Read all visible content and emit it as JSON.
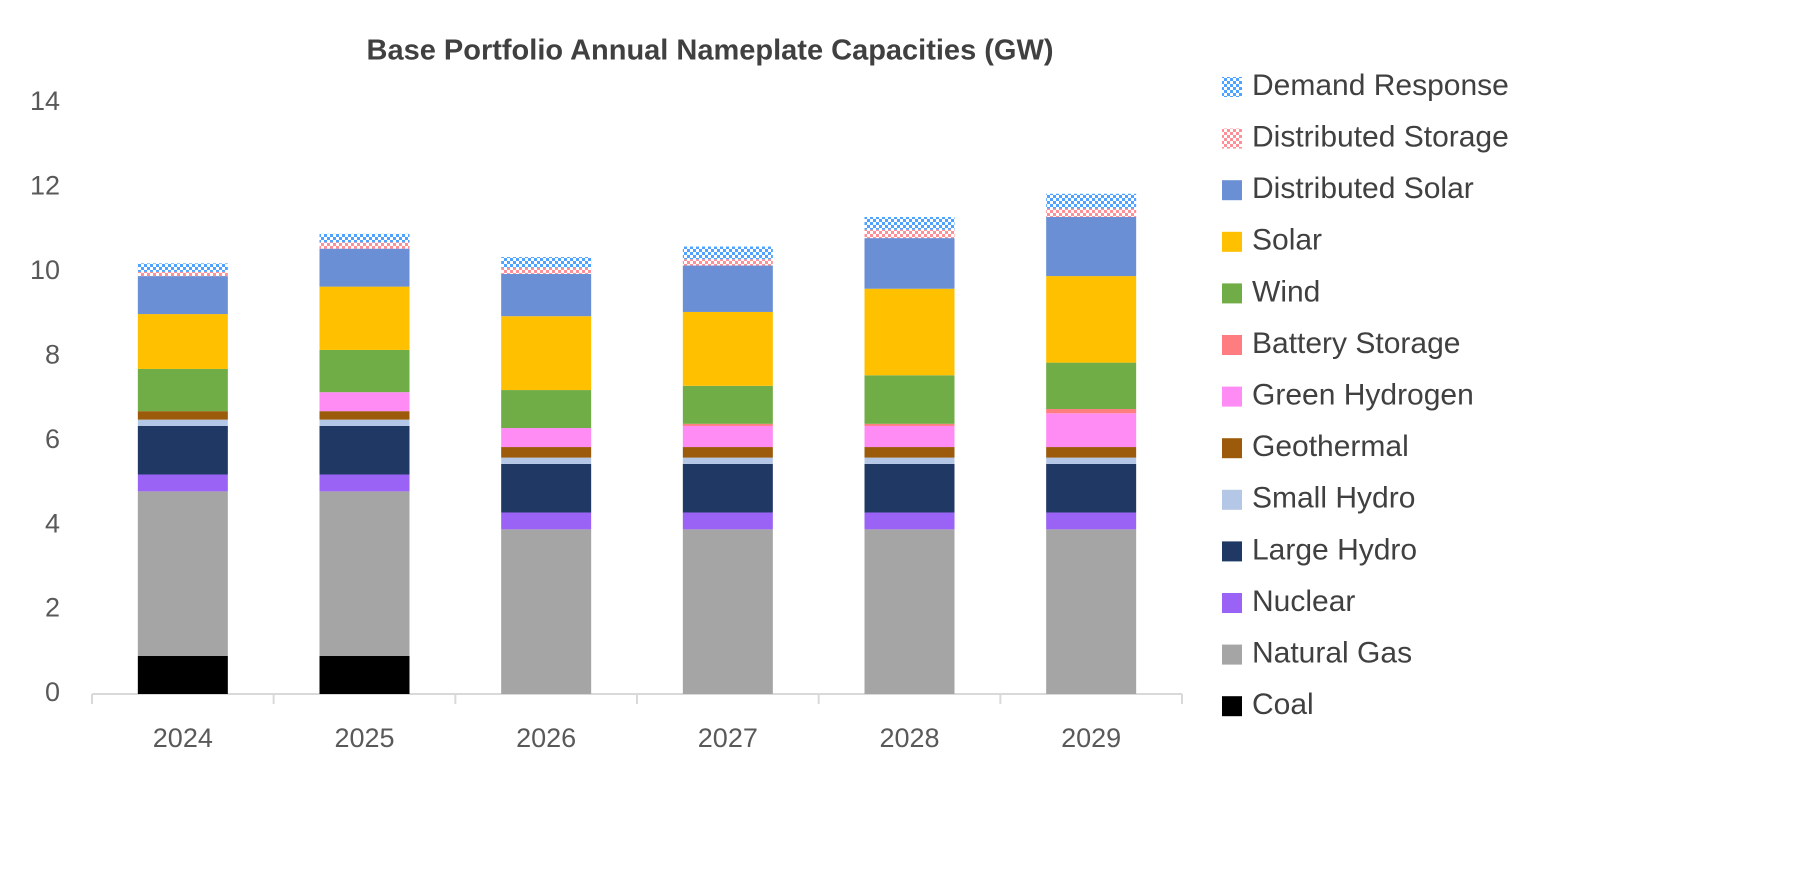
{
  "chart_data": {
    "type": "stacked_bar",
    "title": "Base Portfolio Annual Nameplate Capacities (GW)",
    "categories": [
      "2024",
      "2025",
      "2026",
      "2027",
      "2028",
      "2029"
    ],
    "ylim": [
      0,
      14
    ],
    "yticks": [
      0,
      2,
      4,
      6,
      8,
      10,
      12,
      14
    ],
    "grid": false,
    "legend": "right",
    "series": [
      {
        "name": "Coal",
        "color": "#000000",
        "values": [
          0.9,
          0.9,
          0,
          0,
          0,
          0
        ]
      },
      {
        "name": "Natural Gas",
        "color": "#a5a5a5",
        "values": [
          3.9,
          3.9,
          3.9,
          3.9,
          3.9,
          3.9
        ]
      },
      {
        "name": "Nuclear",
        "color": "#9a63f5",
        "values": [
          0.4,
          0.4,
          0.4,
          0.4,
          0.4,
          0.4
        ]
      },
      {
        "name": "Large Hydro",
        "color": "#1f3864",
        "values": [
          1.15,
          1.15,
          1.15,
          1.15,
          1.15,
          1.15
        ]
      },
      {
        "name": "Small Hydro",
        "color": "#b4c7e7",
        "values": [
          0.15,
          0.15,
          0.15,
          0.15,
          0.15,
          0.15
        ]
      },
      {
        "name": "Geothermal",
        "color": "#9c5b0a",
        "values": [
          0.2,
          0.2,
          0.25,
          0.25,
          0.25,
          0.25
        ]
      },
      {
        "name": "Green Hydrogen",
        "color": "#ff8cf5",
        "values": [
          0,
          0.45,
          0.45,
          0.5,
          0.5,
          0.8
        ]
      },
      {
        "name": "Battery Storage",
        "color": "#ff7c80",
        "values": [
          0,
          0,
          0,
          0.05,
          0.05,
          0.1
        ]
      },
      {
        "name": "Wind",
        "color": "#70ad47",
        "values": [
          1.0,
          1.0,
          0.9,
          0.9,
          1.15,
          1.1
        ]
      },
      {
        "name": "Solar",
        "color": "#ffc000",
        "values": [
          1.3,
          1.5,
          1.75,
          1.75,
          2.05,
          2.05
        ]
      },
      {
        "name": "Distributed Solar",
        "color": "#6a8fd4",
        "values": [
          0.9,
          0.9,
          1.0,
          1.1,
          1.2,
          1.4
        ]
      },
      {
        "name": "Distributed Storage",
        "color": "#ff8f96",
        "pattern": true,
        "values": [
          0.1,
          0.15,
          0.15,
          0.15,
          0.2,
          0.2
        ]
      },
      {
        "name": "Demand Response",
        "color": "#4da3ff",
        "pattern": true,
        "values": [
          0.2,
          0.2,
          0.25,
          0.3,
          0.3,
          0.35
        ]
      }
    ]
  }
}
